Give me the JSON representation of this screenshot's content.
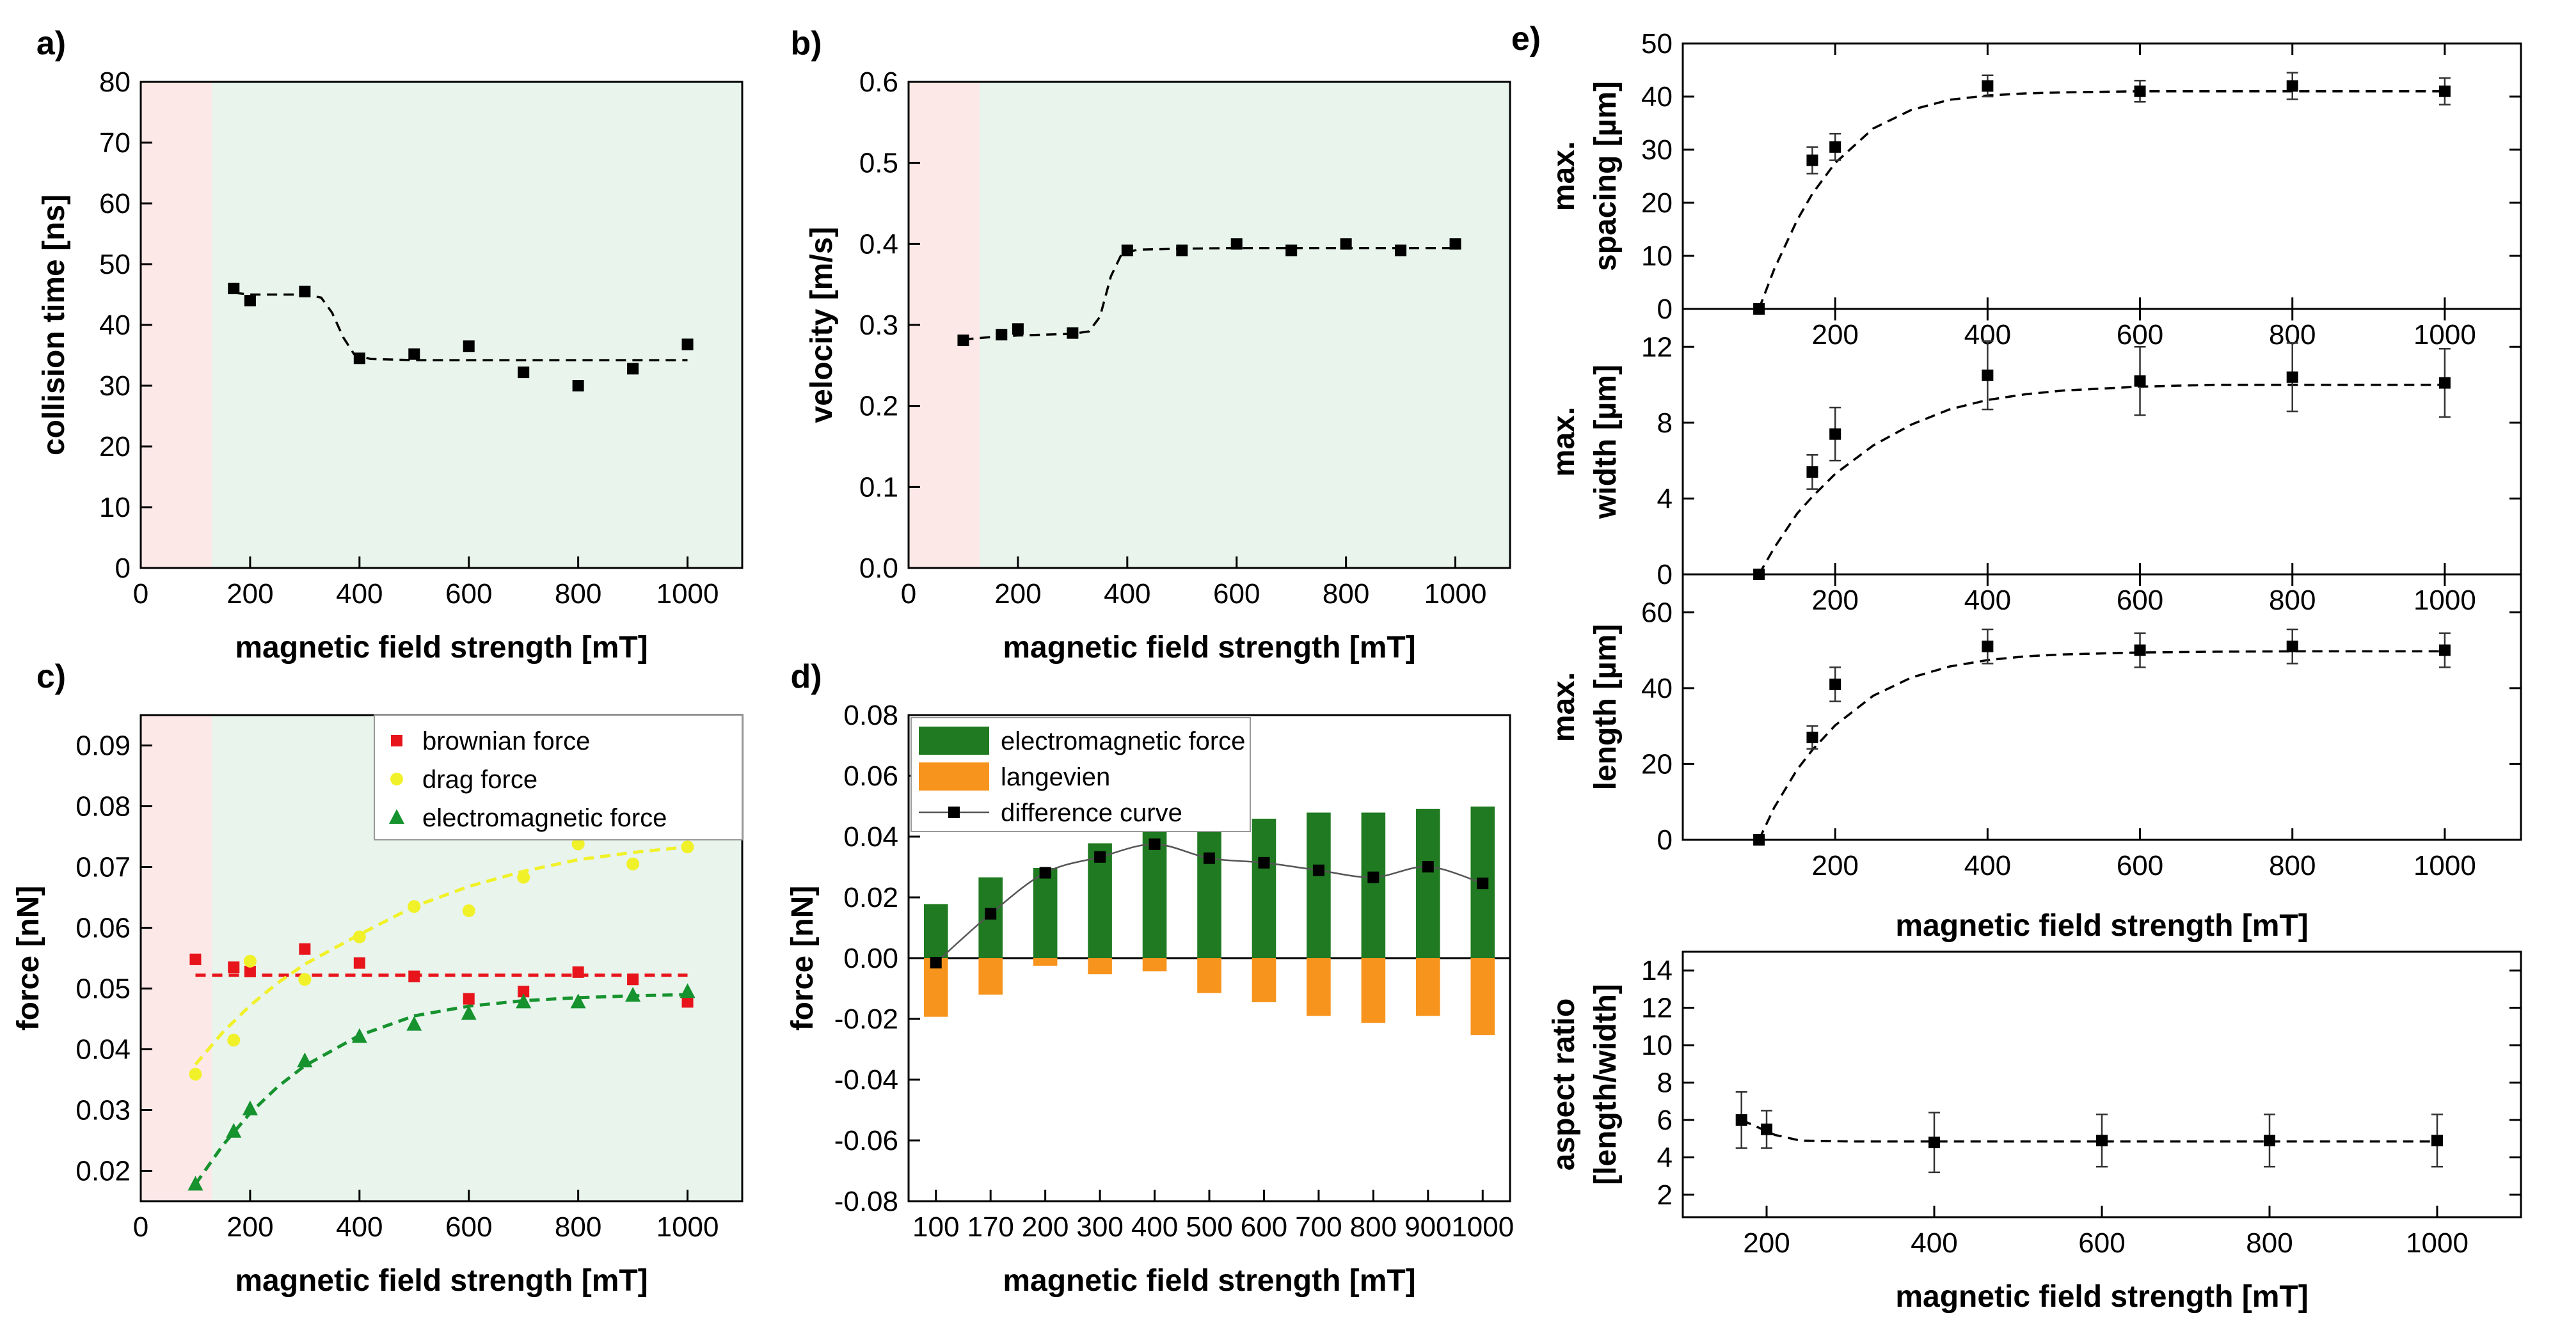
{
  "figure": {
    "x_label": "magnetic field strength [mT]"
  },
  "chart_data": [
    {
      "id": "a",
      "panel_label": "a)",
      "type": "scatter",
      "xlabel": "magnetic field strength [mT]",
      "ylabel": "collision time [ns]",
      "xlim": [
        0,
        1100
      ],
      "ylim": [
        0,
        80
      ],
      "xticks": [
        0,
        200,
        400,
        600,
        800,
        1000
      ],
      "yticks": [
        0,
        10,
        20,
        30,
        40,
        50,
        60,
        70,
        80
      ],
      "regions": [
        {
          "from": 0,
          "to": 130,
          "color": "#fde8e8"
        },
        {
          "from": 130,
          "to": 1100,
          "color": "#e8f4ec"
        }
      ],
      "series": [
        {
          "name": "collision time",
          "x": [
            170,
            200,
            300,
            400,
            500,
            600,
            700,
            800,
            900,
            1000
          ],
          "y": [
            46,
            44,
            45.5,
            34.5,
            35.2,
            36.5,
            32.2,
            30,
            32.8,
            36.8
          ]
        }
      ],
      "fit": {
        "style": "dashed",
        "color": "#000000",
        "x": [
          170,
          200,
          250,
          300,
          330,
          350,
          370,
          390,
          420,
          500,
          600,
          700,
          800,
          900,
          1000
        ],
        "y": [
          45.3,
          45.0,
          45.0,
          45.0,
          44.5,
          42,
          38,
          35.2,
          34.4,
          34.2,
          34.2,
          34.2,
          34.2,
          34.2,
          34.2
        ]
      }
    },
    {
      "id": "b",
      "panel_label": "b)",
      "type": "scatter",
      "xlabel": "magnetic field strength [mT]",
      "ylabel": "velocity [m/s]",
      "xlim": [
        0,
        1100
      ],
      "ylim": [
        0,
        0.6
      ],
      "xticks": [
        0,
        200,
        400,
        600,
        800,
        1000
      ],
      "yticks": [
        0.0,
        0.1,
        0.2,
        0.3,
        0.4,
        0.5,
        0.6
      ],
      "regions": [
        {
          "from": 0,
          "to": 130,
          "color": "#fde8e8"
        },
        {
          "from": 130,
          "to": 1100,
          "color": "#e8f4ec"
        }
      ],
      "series": [
        {
          "name": "velocity",
          "x": [
            100,
            170,
            200,
            300,
            400,
            500,
            600,
            700,
            800,
            900,
            1000
          ],
          "y": [
            0.281,
            0.288,
            0.295,
            0.29,
            0.392,
            0.392,
            0.4,
            0.392,
            0.4,
            0.392,
            0.4
          ]
        }
      ],
      "fit": {
        "style": "dashed",
        "color": "#000000",
        "x": [
          100,
          150,
          200,
          250,
          300,
          330,
          350,
          370,
          390,
          420,
          500,
          600,
          700,
          800,
          900,
          1000
        ],
        "y": [
          0.282,
          0.285,
          0.287,
          0.288,
          0.289,
          0.292,
          0.31,
          0.36,
          0.388,
          0.393,
          0.394,
          0.395,
          0.395,
          0.395,
          0.395,
          0.395
        ]
      }
    },
    {
      "id": "c",
      "panel_label": "c)",
      "type": "scatter",
      "xlabel": "magnetic field strength [mT]",
      "ylabel": "force [nN]",
      "xlim": [
        0,
        1100
      ],
      "ylim": [
        0.015,
        0.095
      ],
      "xticks": [
        0,
        200,
        400,
        600,
        800,
        1000
      ],
      "yticks": [
        0.02,
        0.03,
        0.04,
        0.05,
        0.06,
        0.07,
        0.08,
        0.09
      ],
      "regions": [
        {
          "from": 0,
          "to": 130,
          "color": "#fde8e8"
        },
        {
          "from": 130,
          "to": 1100,
          "color": "#e8f4ec"
        }
      ],
      "series": [
        {
          "name": "brownian force",
          "marker": "square",
          "color": "#e8141b",
          "x": [
            100,
            170,
            200,
            300,
            400,
            500,
            600,
            700,
            800,
            900,
            1000
          ],
          "y": [
            0.0548,
            0.0535,
            0.0528,
            0.0565,
            0.0542,
            0.052,
            0.0483,
            0.0495,
            0.0527,
            0.0515,
            0.0478
          ]
        },
        {
          "name": "drag force",
          "marker": "circle",
          "color": "#f1f12a",
          "x": [
            100,
            170,
            200,
            300,
            400,
            500,
            600,
            700,
            800,
            900,
            1000
          ],
          "y": [
            0.0359,
            0.0415,
            0.0545,
            0.0515,
            0.0585,
            0.0635,
            0.0628,
            0.0683,
            0.0738,
            0.0705,
            0.0733
          ]
        },
        {
          "name": "electromagnetic force",
          "marker": "triangle",
          "color": "#16922e",
          "x": [
            100,
            170,
            200,
            300,
            400,
            500,
            600,
            700,
            800,
            900,
            1000
          ],
          "y": [
            0.0178,
            0.0265,
            0.0302,
            0.0381,
            0.0421,
            0.0441,
            0.0459,
            0.0478,
            0.0478,
            0.0489,
            0.0495
          ]
        }
      ],
      "fits": [
        {
          "series": "brownian force",
          "color": "#e8141b",
          "x": [
            100,
            1000
          ],
          "y": [
            0.0522,
            0.0522
          ]
        },
        {
          "series": "drag force",
          "color": "#f1f12a",
          "x": [
            100,
            150,
            200,
            250,
            300,
            400,
            500,
            600,
            700,
            800,
            900,
            1000
          ],
          "y": [
            0.0375,
            0.0428,
            0.0472,
            0.0509,
            0.054,
            0.0589,
            0.0635,
            0.0668,
            0.0693,
            0.0712,
            0.0724,
            0.0733
          ]
        },
        {
          "series": "electromagnetic force",
          "color": "#16922e",
          "x": [
            100,
            150,
            200,
            250,
            300,
            400,
            500,
            600,
            700,
            800,
            900,
            1000
          ],
          "y": [
            0.0178,
            0.0242,
            0.0295,
            0.0338,
            0.0373,
            0.0423,
            0.0455,
            0.0471,
            0.048,
            0.0485,
            0.0488,
            0.049
          ]
        }
      ],
      "legend": {
        "position": "top-right",
        "entries": [
          "brownian force",
          "drag force",
          "electromagnetic force"
        ]
      }
    },
    {
      "id": "d",
      "panel_label": "d)",
      "type": "bar",
      "xlabel": "magnetic field strength [mT]",
      "ylabel": "force [nN]",
      "categories": [
        "100",
        "170",
        "200",
        "300",
        "400",
        "500",
        "600",
        "700",
        "800",
        "900",
        "1000"
      ],
      "ylim": [
        -0.08,
        0.08
      ],
      "yticks": [
        -0.08,
        -0.06,
        -0.04,
        -0.02,
        0.0,
        0.02,
        0.04,
        0.06,
        0.08
      ],
      "series": [
        {
          "name": "electromagnetic force",
          "color": "#1f7a21",
          "values": [
            0.0178,
            0.0266,
            0.0297,
            0.0378,
            0.0418,
            0.0444,
            0.0459,
            0.0479,
            0.0479,
            0.0491,
            0.0499
          ]
        },
        {
          "name": "langevien",
          "color": "#f7941d",
          "values": [
            -0.0193,
            -0.012,
            -0.0025,
            -0.0053,
            -0.0043,
            -0.0115,
            -0.0145,
            -0.019,
            -0.0213,
            -0.019,
            -0.0253
          ]
        },
        {
          "name": "difference curve",
          "type": "line",
          "color": "#000000",
          "values": [
            -0.0015,
            0.0146,
            0.0281,
            0.0333,
            0.0375,
            0.0329,
            0.0314,
            0.0289,
            0.0266,
            0.0301,
            0.0246
          ]
        }
      ],
      "legend": {
        "position": "top-left",
        "entries": [
          "electromagnetic force",
          "langevien",
          "difference curve"
        ]
      }
    },
    {
      "id": "e1",
      "panel_label": "e)",
      "type": "scatter",
      "ylabel_lines": [
        "max.",
        "spacing [µm]"
      ],
      "xlim": [
        0,
        1100
      ],
      "ylim": [
        0,
        50
      ],
      "xticks": [
        200,
        400,
        600,
        800,
        1000
      ],
      "yticks": [
        0,
        10,
        20,
        30,
        40,
        50
      ],
      "series": [
        {
          "name": "max. spacing",
          "x": [
            100,
            170,
            200,
            400,
            600,
            800,
            1000
          ],
          "y": [
            0,
            28,
            30.5,
            42,
            41,
            42,
            41
          ],
          "err": [
            0,
            2.5,
            2.5,
            2,
            2,
            2.5,
            2.5
          ]
        }
      ],
      "fit": {
        "style": "dashed",
        "color": "#000000",
        "x": [
          100,
          120,
          150,
          170,
          200,
          250,
          300,
          350,
          400,
          450,
          500,
          600,
          700,
          800,
          900,
          1000
        ],
        "y": [
          0,
          7.5,
          16.7,
          21.7,
          27.5,
          34,
          37.5,
          39.4,
          40.2,
          40.6,
          40.8,
          41,
          41,
          41,
          41,
          41
        ]
      }
    },
    {
      "id": "e2",
      "type": "scatter",
      "ylabel_lines": [
        "max.",
        "width [µm]"
      ],
      "xlim": [
        0,
        1100
      ],
      "ylim": [
        0,
        14
      ],
      "xticks": [
        200,
        400,
        600,
        800,
        1000
      ],
      "yticks": [
        0,
        4,
        8,
        12
      ],
      "series": [
        {
          "name": "max. width",
          "x": [
            100,
            170,
            200,
            400,
            600,
            800,
            1000
          ],
          "y": [
            0,
            5.4,
            7.4,
            10.5,
            10.2,
            10.4,
            10.1
          ],
          "err": [
            0,
            0.9,
            1.4,
            1.8,
            1.8,
            1.8,
            1.8
          ]
        }
      ],
      "fit": {
        "style": "dashed",
        "color": "#000000",
        "x": [
          100,
          120,
          150,
          170,
          200,
          250,
          300,
          350,
          400,
          450,
          500,
          600,
          700,
          800,
          900,
          1000
        ],
        "y": [
          0,
          1.4,
          3.2,
          4.1,
          5.3,
          6.8,
          7.9,
          8.7,
          9.2,
          9.5,
          9.7,
          9.9,
          10,
          10,
          10,
          10
        ]
      }
    },
    {
      "id": "e3",
      "type": "scatter",
      "ylabel_lines": [
        "max.",
        "length [µm]"
      ],
      "xlim": [
        0,
        1100
      ],
      "ylim": [
        0,
        70
      ],
      "xticks": [
        200,
        400,
        600,
        800,
        1000
      ],
      "yticks": [
        0,
        20,
        40,
        60
      ],
      "xlabel": "magnetic field strength [mT]",
      "series": [
        {
          "name": "max. length",
          "x": [
            100,
            170,
            200,
            400,
            600,
            800,
            1000
          ],
          "y": [
            0,
            27,
            41,
            51,
            50,
            51,
            50
          ],
          "err": [
            0,
            3,
            4.5,
            4.5,
            4.5,
            4.5,
            4.5
          ]
        }
      ],
      "fit": {
        "style": "dashed",
        "color": "#000000",
        "x": [
          100,
          120,
          150,
          170,
          200,
          250,
          300,
          350,
          400,
          450,
          500,
          600,
          700,
          800,
          900,
          1000
        ],
        "y": [
          0,
          8.5,
          18.5,
          23.7,
          30.2,
          38,
          42.8,
          45.7,
          47.4,
          48.4,
          48.9,
          49.4,
          49.6,
          49.7,
          49.7,
          49.7
        ]
      }
    },
    {
      "id": "e4",
      "type": "scatter",
      "ylabel_lines": [
        "aspect ratio",
        "[length/width]"
      ],
      "xlabel": "magnetic field strength [mT]",
      "xlim": [
        100,
        1100
      ],
      "ylim": [
        0.8,
        15
      ],
      "xticks": [
        200,
        400,
        600,
        800,
        1000
      ],
      "yticks": [
        2,
        4,
        6,
        8,
        10,
        12,
        14
      ],
      "series": [
        {
          "name": "aspect ratio",
          "x": [
            170,
            200,
            400,
            600,
            800,
            1000
          ],
          "y": [
            6.0,
            5.5,
            4.8,
            4.9,
            4.9,
            4.9
          ],
          "err": [
            1.5,
            1.0,
            1.6,
            1.4,
            1.4,
            1.4
          ]
        }
      ],
      "fit": {
        "style": "dashed",
        "color": "#000000",
        "x": [
          170,
          190,
          210,
          240,
          300,
          400,
          600,
          800,
          1000
        ],
        "y": [
          6.0,
          5.6,
          5.2,
          4.9,
          4.85,
          4.85,
          4.85,
          4.85,
          4.85
        ]
      }
    }
  ]
}
